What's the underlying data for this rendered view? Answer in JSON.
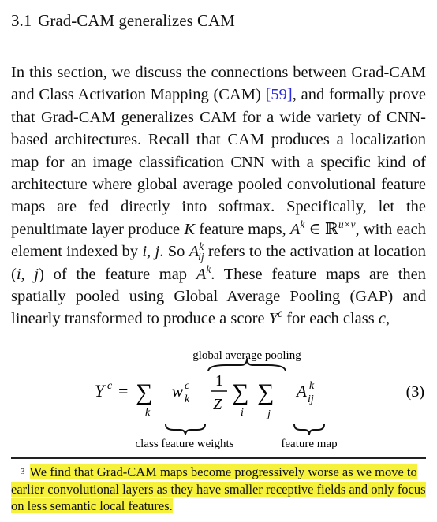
{
  "section": {
    "number": "3.1",
    "title": "Grad-CAM generalizes CAM"
  },
  "paragraph": {
    "part1": "In this section, we discuss the connections between Grad-CAM and Class Activation Mapping (CAM) ",
    "citation": "[59]",
    "part2": ", and formally prove that Grad-CAM generalizes CAM for a wide variety of CNN-based architectures. Recall that CAM produces a localization map for an image classification CNN with a specific kind of architecture where global average pooled convolutional feature maps are fed directly into softmax. Specifically, let the penultimate layer produce ",
    "var_K": "K",
    "part3": " feature maps, ",
    "part4": ", with each element indexed by ",
    "part5": ". So ",
    "part6": " refers to the activation at location ",
    "part7": " of the feature map ",
    "part8": ". These feature maps are then spatially pooled using Global Average Pooling (GAP) and linearly transformed to produce a score ",
    "part9": " for each class ",
    "part10": ","
  },
  "equation": {
    "number": "(3)",
    "label_top": "global average pooling",
    "label_left": "class feature weights",
    "label_right": "feature map"
  },
  "footnote": {
    "mark": "3",
    "text": "We find that Grad-CAM maps become progressively worse as we move to earlier convolutional layers as they have smaller receptive fields and only focus on less semantic local features."
  }
}
